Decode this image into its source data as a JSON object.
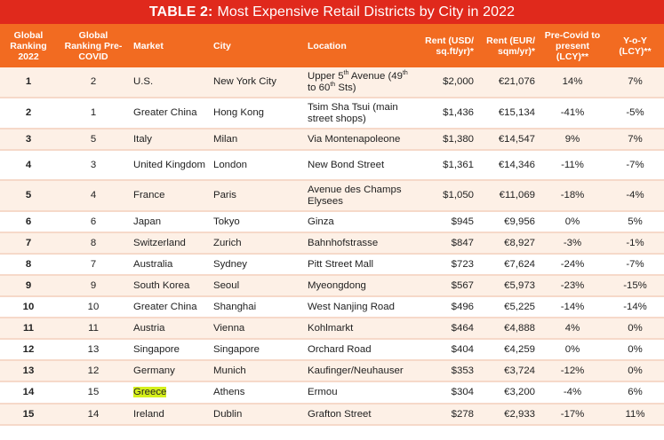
{
  "title": {
    "prefix": "TABLE 2:",
    "text": "Most Expensive Retail Districts by City in 2022"
  },
  "headers": [
    "Global Ranking 2022",
    "Global Ranking Pre-COVID",
    "Market",
    "City",
    "Location",
    "Rent (USD/ sq.ft/yr)*",
    "Rent (EUR/ sqm/yr)*",
    "Pre-Covid to present (LCY)**",
    "Y-o-Y (LCY)**"
  ],
  "highlight_color": "#d6f01b",
  "chart_data": {
    "type": "table",
    "title": "TABLE 2: Most Expensive Retail Districts by City in 2022",
    "columns": [
      "Global Ranking 2022",
      "Global Ranking Pre-COVID",
      "Market",
      "City",
      "Location",
      "Rent (USD/ sq.ft/yr)*",
      "Rent (EUR/ sqm/yr)*",
      "Pre-Covid to present (LCY)**",
      "Y-o-Y (LCY)**"
    ],
    "rows": [
      {
        "rank": "1",
        "pre": "2",
        "market": "U.S.",
        "city": "New York City",
        "location": "Upper 5th Avenue (49th to 60th Sts)",
        "usd": "$2,000",
        "eur": "€21,076",
        "precovid": "14%",
        "yoy": "7%"
      },
      {
        "rank": "2",
        "pre": "1",
        "market": "Greater China",
        "city": "Hong Kong",
        "location": "Tsim Sha Tsui (main street shops)",
        "usd": "$1,436",
        "eur": "€15,134",
        "precovid": "-41%",
        "yoy": "-5%"
      },
      {
        "rank": "3",
        "pre": "5",
        "market": "Italy",
        "city": "Milan",
        "location": "Via Montenapoleone",
        "usd": "$1,380",
        "eur": "€14,547",
        "precovid": "9%",
        "yoy": "7%"
      },
      {
        "rank": "4",
        "pre": "3",
        "market": "United Kingdom",
        "city": "London",
        "location": "New Bond Street",
        "usd": "$1,361",
        "eur": "€14,346",
        "precovid": "-11%",
        "yoy": "-7%"
      },
      {
        "rank": "5",
        "pre": "4",
        "market": "France",
        "city": "Paris",
        "location": "Avenue des Champs Elysees",
        "usd": "$1,050",
        "eur": "€11,069",
        "precovid": "-18%",
        "yoy": "-4%"
      },
      {
        "rank": "6",
        "pre": "6",
        "market": "Japan",
        "city": "Tokyo",
        "location": "Ginza",
        "usd": "$945",
        "eur": "€9,956",
        "precovid": "0%",
        "yoy": "5%"
      },
      {
        "rank": "7",
        "pre": "8",
        "market": "Switzerland",
        "city": "Zurich",
        "location": "Bahnhofstrasse",
        "usd": "$847",
        "eur": "€8,927",
        "precovid": "-3%",
        "yoy": "-1%"
      },
      {
        "rank": "8",
        "pre": "7",
        "market": "Australia",
        "city": "Sydney",
        "location": "Pitt Street Mall",
        "usd": "$723",
        "eur": "€7,624",
        "precovid": "-24%",
        "yoy": "-7%"
      },
      {
        "rank": "9",
        "pre": "9",
        "market": "South Korea",
        "city": "Seoul",
        "location": "Myeongdong",
        "usd": "$567",
        "eur": "€5,973",
        "precovid": "-23%",
        "yoy": "-15%"
      },
      {
        "rank": "10",
        "pre": "10",
        "market": "Greater China",
        "city": "Shanghai",
        "location": "West Nanjing Road",
        "usd": "$496",
        "eur": "€5,225",
        "precovid": "-14%",
        "yoy": "-14%"
      },
      {
        "rank": "11",
        "pre": "11",
        "market": "Austria",
        "city": "Vienna",
        "location": "Kohlmarkt",
        "usd": "$464",
        "eur": "€4,888",
        "precovid": "4%",
        "yoy": "0%"
      },
      {
        "rank": "12",
        "pre": "13",
        "market": "Singapore",
        "city": "Singapore",
        "location": "Orchard Road",
        "usd": "$404",
        "eur": "€4,259",
        "precovid": "0%",
        "yoy": "0%"
      },
      {
        "rank": "13",
        "pre": "12",
        "market": "Germany",
        "city": "Munich",
        "location": "Kaufinger/Neuhauser",
        "usd": "$353",
        "eur": "€3,724",
        "precovid": "-12%",
        "yoy": "0%"
      },
      {
        "rank": "14",
        "pre": "15",
        "market": "Greece",
        "city": "Athens",
        "location": "Ermou",
        "usd": "$304",
        "eur": "€3,200",
        "precovid": "-4%",
        "yoy": "6%",
        "highlight_market": true
      },
      {
        "rank": "15",
        "pre": "14",
        "market": "Ireland",
        "city": "Dublin",
        "location": "Grafton Street",
        "usd": "$278",
        "eur": "€2,933",
        "precovid": "-17%",
        "yoy": "11%"
      }
    ]
  }
}
